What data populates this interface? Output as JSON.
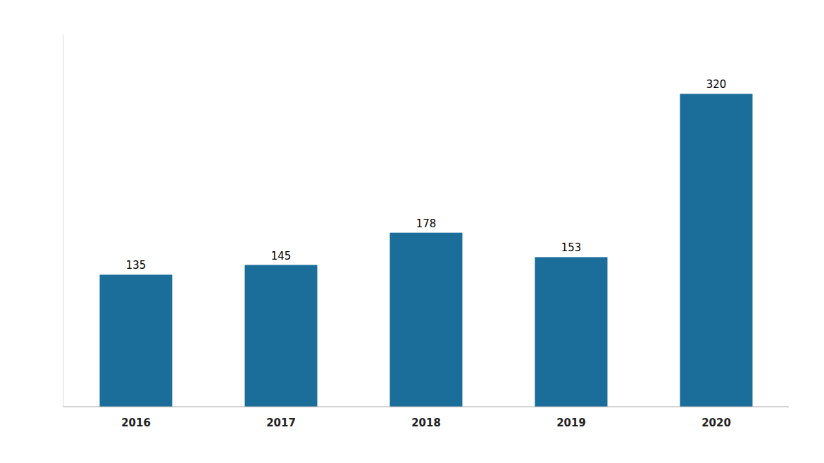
{
  "chart_data": {
    "type": "bar",
    "categories": [
      "2016",
      "2017",
      "2018",
      "2019",
      "2020"
    ],
    "values": [
      135,
      145,
      178,
      153,
      320
    ],
    "color": "#1b6e9a",
    "ylim": [
      0,
      380
    ],
    "data_labels": true,
    "tick_labels": "x",
    "grid": false
  }
}
